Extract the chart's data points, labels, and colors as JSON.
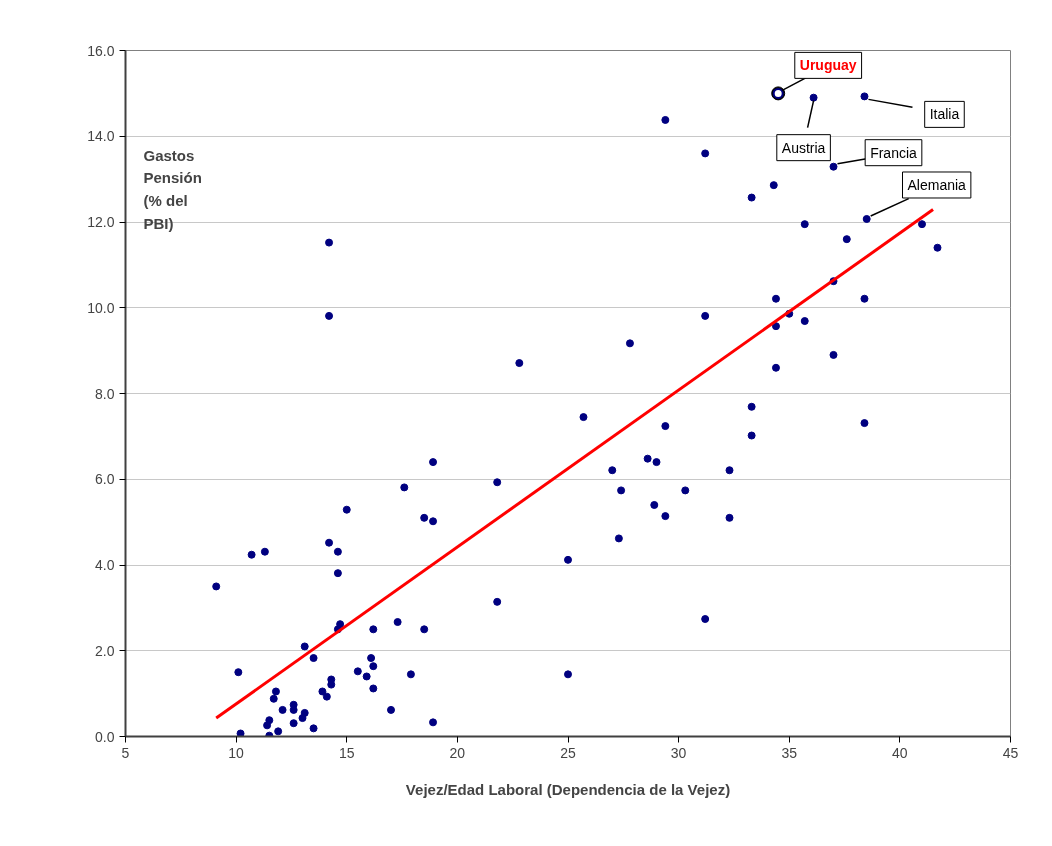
{
  "chart_data": {
    "type": "scatter",
    "xlabel": "Vejez/Edad Laboral (Dependencia de la Vejez)",
    "ylabel": "Gastos Pensión (% del PBI)",
    "xlim": [
      5,
      45
    ],
    "xticks": [
      5,
      10,
      15,
      20,
      25,
      30,
      35,
      40,
      45
    ],
    "ylim": [
      0,
      16
    ],
    "yticks": [
      {
        "value": 0,
        "label": "0.0"
      },
      {
        "value": 2,
        "label": "2.0"
      },
      {
        "value": 4,
        "label": "4.0"
      },
      {
        "value": 6,
        "label": "6.0"
      },
      {
        "value": 8,
        "label": "8.0"
      },
      {
        "value": 10,
        "label": "10.0"
      },
      {
        "value": 12,
        "label": "12.0"
      },
      {
        "value": 14,
        "label": "14.0"
      },
      {
        "value": 16,
        "label": "16.0"
      }
    ],
    "grid": "y",
    "marker": "circle",
    "series": [
      {
        "color": "#000080",
        "x": [
          9.1,
          10.1,
          10.2,
          10.7,
          11.3,
          11.5,
          11.4,
          11.5,
          11.7,
          11.8,
          11.9,
          12.1,
          12.6,
          12.6,
          12.6,
          13.0,
          13.1,
          13.1,
          13.5,
          13.5,
          13.9,
          14.1,
          14.3,
          14.3,
          14.2,
          14.6,
          14.6,
          15.0,
          14.7,
          14.6,
          15.5,
          15.9,
          16.1,
          16.2,
          16.2,
          16.2,
          17.0,
          17.3,
          17.6,
          17.9,
          18.5,
          18.9,
          18.5,
          18.9,
          14.2,
          14.2,
          18.9,
          22.8,
          27.8,
          25.7,
          29.4,
          21.8,
          27.0,
          28.6,
          29.0,
          27.4,
          30.3,
          28.9,
          29.4,
          32.3,
          32.3,
          27.3,
          25.0,
          21.8,
          31.2,
          25.0,
          34.4,
          38.4,
          37.0,
          31.2,
          35.0,
          34.4,
          35.7,
          37.0,
          34.4,
          33.3,
          33.3,
          38.4,
          36.1,
          38.4,
          29.4,
          31.2,
          37.0,
          34.3,
          33.3,
          38.5,
          35.7,
          41.0,
          37.6,
          41.7
        ],
        "values": [
          3.5,
          1.5,
          0.07,
          4.24,
          4.31,
          0.02,
          0.26,
          0.38,
          0.88,
          1.05,
          0.12,
          0.62,
          0.74,
          0.62,
          0.31,
          0.43,
          0.55,
          2.1,
          1.83,
          0.19,
          1.05,
          0.93,
          1.33,
          1.21,
          4.52,
          3.81,
          4.31,
          5.29,
          2.62,
          2.5,
          1.52,
          1.4,
          1.83,
          1.64,
          1.12,
          2.5,
          0.62,
          2.67,
          5.81,
          1.45,
          5.1,
          5.02,
          2.5,
          0.33,
          11.52,
          9.81,
          6.4,
          8.71,
          9.17,
          7.45,
          7.24,
          5.93,
          6.21,
          6.48,
          6.4,
          5.74,
          5.74,
          5.4,
          5.14,
          6.21,
          5.1,
          4.62,
          4.12,
          3.14,
          2.74,
          1.45,
          10.21,
          10.21,
          10.62,
          9.81,
          9.86,
          9.57,
          9.69,
          8.9,
          8.6,
          7.69,
          7.02,
          7.31,
          14.9,
          14.93,
          14.38,
          13.6,
          13.29,
          12.86,
          12.57,
          12.07,
          11.95,
          11.95,
          11.6,
          11.4
        ]
      },
      {
        "type": "scatter",
        "color": "#ffffff",
        "marker": "circle",
        "x": [
          34.5
        ],
        "values": [
          15.0
        ]
      },
      {
        "type": "line",
        "color": "#ff0000",
        "marker": "none",
        "x": [
          9.1,
          41.5
        ],
        "values": [
          0.43,
          12.29
        ]
      }
    ],
    "annotations": [
      {
        "text": "Uruguay",
        "x": 34.5,
        "y": 15.0
      },
      {
        "text": "Austria",
        "x": 36.1,
        "y": 14.9
      },
      {
        "text": "Italia",
        "x": 38.4,
        "y": 14.93
      },
      {
        "text": "Francia",
        "x": 37.0,
        "y": 13.29
      },
      {
        "text": "Alemania",
        "x": 38.5,
        "y": 12.07
      }
    ]
  }
}
